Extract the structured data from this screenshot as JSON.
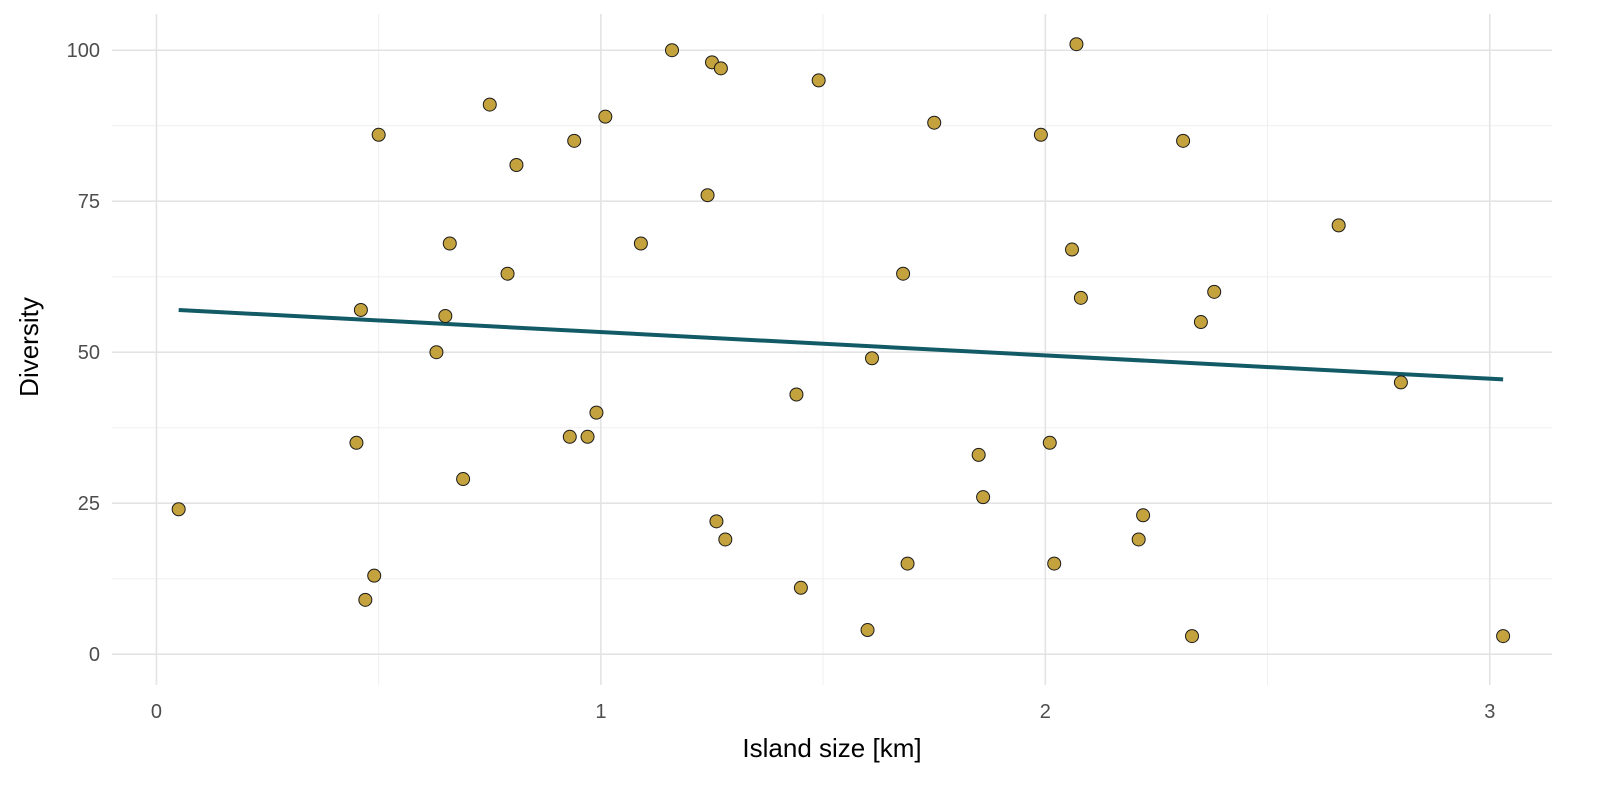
{
  "chart_data": {
    "type": "scatter",
    "title": "",
    "xlabel": "Island size [km]",
    "ylabel": "Diversity",
    "xlim": [
      -0.1,
      3.14
    ],
    "ylim": [
      -5.1,
      106
    ],
    "x_ticks": [
      0,
      1,
      2,
      3
    ],
    "x_tick_labels": [
      "0",
      "1",
      "2",
      "3"
    ],
    "y_ticks": [
      0,
      25,
      50,
      75,
      100
    ],
    "y_tick_labels": [
      "0",
      "25",
      "50",
      "75",
      "100"
    ],
    "x_minor_ticks": [
      0.5,
      1.5,
      2.5
    ],
    "y_minor_ticks": [
      12.5,
      37.5,
      62.5,
      87.5
    ],
    "grid": true,
    "legend": "none",
    "colors": {
      "point_fill": "#C4A23E",
      "point_stroke": "#1a1a1a",
      "trend_line": "#135A67",
      "grid_major": "#e3e3e3",
      "grid_minor": "#efefef"
    },
    "series": [
      {
        "x": [
          0.05,
          0.45,
          0.46,
          0.47,
          0.49,
          0.5,
          0.63,
          0.65,
          0.66,
          0.69,
          0.75,
          0.79,
          0.81,
          0.93,
          0.94,
          0.97,
          0.99,
          1.01,
          1.09,
          1.16,
          1.24,
          1.25,
          1.26,
          1.27,
          1.28,
          1.44,
          1.45,
          1.49,
          1.6,
          1.61,
          1.68,
          1.69,
          1.75,
          1.85,
          1.86,
          1.99,
          2.01,
          2.02,
          2.06,
          2.07,
          2.08,
          2.21,
          2.22,
          2.31,
          2.33,
          2.35,
          2.38,
          2.66,
          2.8,
          3.03
        ],
        "y": [
          24,
          35,
          57,
          9,
          13,
          86,
          50,
          56,
          68,
          29,
          91,
          63,
          81,
          36,
          85,
          36,
          40,
          89,
          68,
          100,
          76,
          98,
          22,
          97,
          19,
          43,
          11,
          95,
          4,
          49,
          63,
          15,
          88,
          33,
          26,
          86,
          35,
          15,
          67,
          101,
          59,
          19,
          23,
          85,
          3,
          55,
          60,
          71,
          45,
          3
        ]
      }
    ],
    "trend_line": {
      "x": [
        0.05,
        3.03
      ],
      "y": [
        57,
        45.5
      ]
    }
  }
}
